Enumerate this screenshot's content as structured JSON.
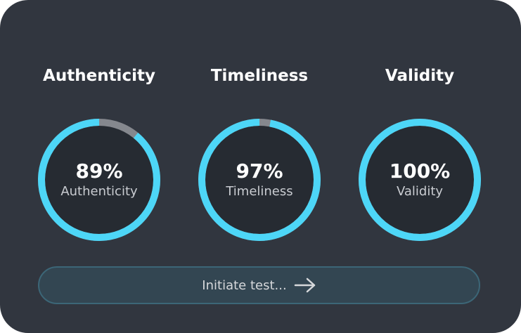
{
  "colors": {
    "accent": "#4dd6f7",
    "track": "#85888e",
    "background": "#31363f",
    "inner": "#262b32"
  },
  "metrics": [
    {
      "title": "Authenticity",
      "value": 89,
      "value_text": "89%",
      "label": "Authenticity"
    },
    {
      "title": "Timeliness",
      "value": 97,
      "value_text": "97%",
      "label": "Timeliness"
    },
    {
      "title": "Validity",
      "value": 100,
      "value_text": "100%",
      "label": "Validity"
    }
  ],
  "button": {
    "label": "Initiate test...",
    "icon": "arrow-right-icon"
  }
}
